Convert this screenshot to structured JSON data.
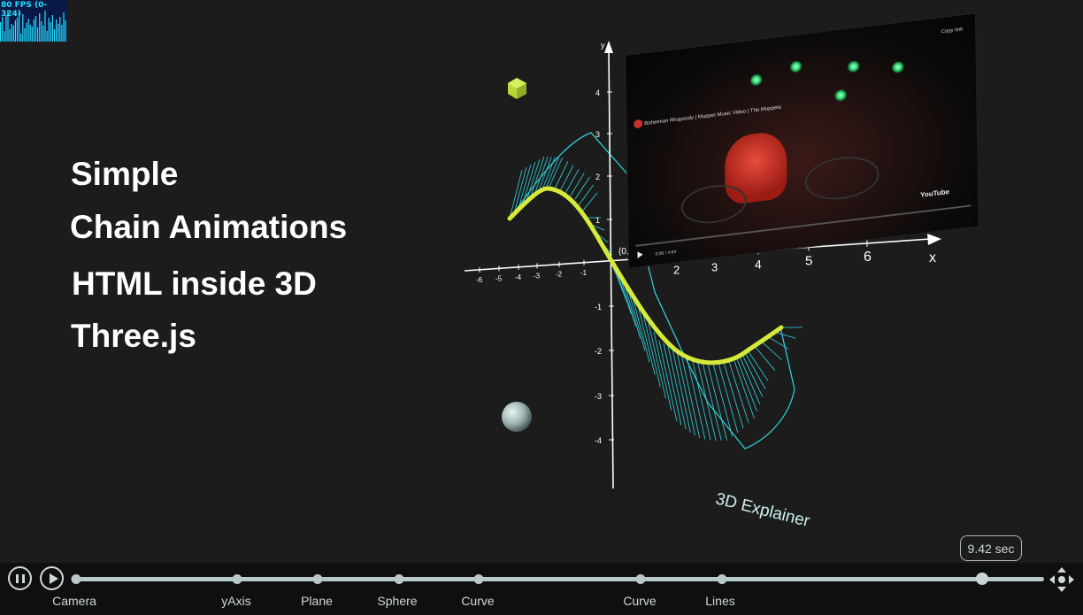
{
  "fps_meter": {
    "label": "80 FPS (0-324)"
  },
  "headlines": {
    "line1": "Simple",
    "line2": "Chain Animations",
    "line3": "HTML inside 3D",
    "line4": "Three.js"
  },
  "scene": {
    "x_axis_label": "x",
    "y_axis_label": "y",
    "origin_label": "(0, 0)",
    "x_ticks_positive": [
      "2",
      "3",
      "4",
      "5",
      "6"
    ],
    "x_ticks_negative": [
      "-6",
      "-5",
      "-4",
      "-3",
      "-2",
      "-1"
    ],
    "y_ticks_positive": [
      "1",
      "2",
      "3",
      "4"
    ],
    "y_ticks_negative": [
      "-1",
      "-2",
      "-3",
      "-4"
    ],
    "caption": "3D Explainer",
    "colors": {
      "curve": "#d7ea3a",
      "plane": "#2fd6df",
      "cube": "#b9d837",
      "sphere": "#b8c9c8"
    }
  },
  "video": {
    "title": "Bohemian Rhapsody | Muppet Music Video | The Muppets",
    "copy_link": "Copy link",
    "brand": "YouTube",
    "time": "0:00 / 4:54"
  },
  "timeline": {
    "elapsed": "9.42 sec",
    "progress": 0.936,
    "labels": [
      "Camera",
      "yAxis",
      "Plane",
      "Sphere",
      "Curve",
      "Curve",
      "Lines"
    ]
  }
}
